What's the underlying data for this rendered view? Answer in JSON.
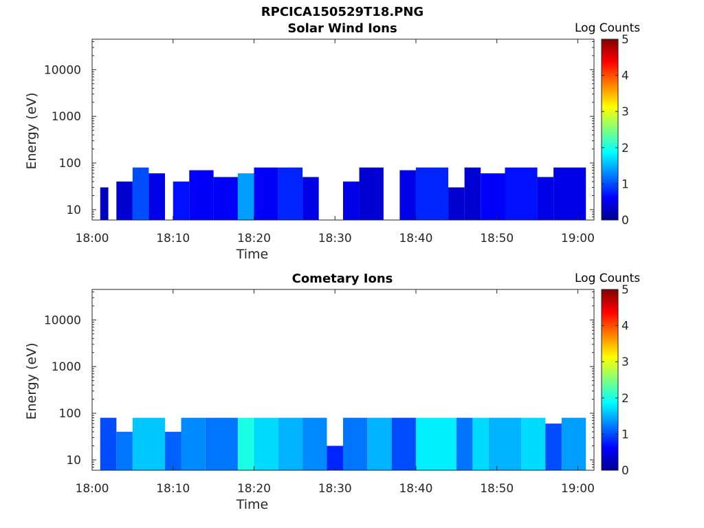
{
  "figure": {
    "title": "RPCICA150529T18.PNG"
  },
  "colors": {
    "colormap": "jet",
    "axis": "#262626",
    "background": "#ffffff"
  },
  "chart_data": [
    {
      "type": "heatmap",
      "title": "Solar Wind Ions",
      "xlabel": "Time",
      "ylabel": "Energy (eV)",
      "y_scale": "log",
      "ylim": [
        6,
        45000
      ],
      "xlim": [
        "18:00",
        "19:02"
      ],
      "x_ticks": [
        "18:00",
        "18:10",
        "18:20",
        "18:30",
        "18:40",
        "18:50",
        "19:00"
      ],
      "y_ticks": [
        "10",
        "100",
        "1000",
        "10000"
      ],
      "colorbar": {
        "label": "Log Counts",
        "min": 0,
        "max": 5,
        "ticks": [
          "0",
          "1",
          "2",
          "3",
          "4",
          "5"
        ]
      },
      "energy_range_observed": [
        6,
        80
      ],
      "segments": [
        {
          "start": "18:01",
          "end": "18:02",
          "emax": 30,
          "log_counts": 0.3
        },
        {
          "start": "18:03",
          "end": "18:05",
          "emax": 40,
          "log_counts": 0.4
        },
        {
          "start": "18:05",
          "end": "18:07",
          "emax": 80,
          "log_counts": 1.0
        },
        {
          "start": "18:07",
          "end": "18:09",
          "emax": 60,
          "log_counts": 0.5
        },
        {
          "start": "18:10",
          "end": "18:12",
          "emax": 40,
          "log_counts": 0.7
        },
        {
          "start": "18:12",
          "end": "18:15",
          "emax": 70,
          "log_counts": 0.6
        },
        {
          "start": "18:15",
          "end": "18:18",
          "emax": 50,
          "log_counts": 0.6
        },
        {
          "start": "18:18",
          "end": "18:20",
          "emax": 60,
          "log_counts": 1.4
        },
        {
          "start": "18:20",
          "end": "18:23",
          "emax": 80,
          "log_counts": 0.6
        },
        {
          "start": "18:23",
          "end": "18:26",
          "emax": 80,
          "log_counts": 0.8
        },
        {
          "start": "18:26",
          "end": "18:28",
          "emax": 50,
          "log_counts": 0.5
        },
        {
          "start": "18:31",
          "end": "18:33",
          "emax": 40,
          "log_counts": 0.5
        },
        {
          "start": "18:33",
          "end": "18:36",
          "emax": 80,
          "log_counts": 0.4
        },
        {
          "start": "18:38",
          "end": "18:40",
          "emax": 70,
          "log_counts": 0.5
        },
        {
          "start": "18:40",
          "end": "18:44",
          "emax": 80,
          "log_counts": 0.8
        },
        {
          "start": "18:44",
          "end": "18:46",
          "emax": 30,
          "log_counts": 0.4
        },
        {
          "start": "18:46",
          "end": "18:48",
          "emax": 80,
          "log_counts": 0.4
        },
        {
          "start": "18:48",
          "end": "18:51",
          "emax": 60,
          "log_counts": 0.6
        },
        {
          "start": "18:51",
          "end": "18:55",
          "emax": 80,
          "log_counts": 0.7
        },
        {
          "start": "18:55",
          "end": "18:57",
          "emax": 50,
          "log_counts": 0.5
        },
        {
          "start": "18:57",
          "end": "19:01",
          "emax": 80,
          "log_counts": 0.5
        }
      ]
    },
    {
      "type": "heatmap",
      "title": "Cometary Ions",
      "xlabel": "Time",
      "ylabel": "Energy (eV)",
      "y_scale": "log",
      "ylim": [
        6,
        45000
      ],
      "xlim": [
        "18:00",
        "19:02"
      ],
      "x_ticks": [
        "18:00",
        "18:10",
        "18:20",
        "18:30",
        "18:40",
        "18:50",
        "19:00"
      ],
      "y_ticks": [
        "10",
        "100",
        "1000",
        "10000"
      ],
      "colorbar": {
        "label": "Log Counts",
        "min": 0,
        "max": 5,
        "ticks": [
          "0",
          "1",
          "2",
          "3",
          "4",
          "5"
        ]
      },
      "energy_range_observed": [
        6,
        80
      ],
      "segments": [
        {
          "start": "18:01",
          "end": "18:03",
          "emax": 80,
          "log_counts": 1.0
        },
        {
          "start": "18:03",
          "end": "18:05",
          "emax": 40,
          "log_counts": 1.2
        },
        {
          "start": "18:05",
          "end": "18:09",
          "emax": 80,
          "log_counts": 1.6
        },
        {
          "start": "18:09",
          "end": "18:11",
          "emax": 40,
          "log_counts": 1.1
        },
        {
          "start": "18:11",
          "end": "18:14",
          "emax": 80,
          "log_counts": 1.3
        },
        {
          "start": "18:14",
          "end": "18:18",
          "emax": 80,
          "log_counts": 1.2
        },
        {
          "start": "18:18",
          "end": "18:20",
          "emax": 80,
          "log_counts": 2.0
        },
        {
          "start": "18:20",
          "end": "18:23",
          "emax": 80,
          "log_counts": 1.7
        },
        {
          "start": "18:23",
          "end": "18:26",
          "emax": 80,
          "log_counts": 1.5
        },
        {
          "start": "18:26",
          "end": "18:29",
          "emax": 80,
          "log_counts": 1.3
        },
        {
          "start": "18:29",
          "end": "18:31",
          "emax": 20,
          "log_counts": 0.8
        },
        {
          "start": "18:31",
          "end": "18:34",
          "emax": 80,
          "log_counts": 1.2
        },
        {
          "start": "18:34",
          "end": "18:37",
          "emax": 80,
          "log_counts": 1.5
        },
        {
          "start": "18:37",
          "end": "18:40",
          "emax": 80,
          "log_counts": 1.0
        },
        {
          "start": "18:40",
          "end": "18:45",
          "emax": 80,
          "log_counts": 1.8
        },
        {
          "start": "18:45",
          "end": "18:47",
          "emax": 80,
          "log_counts": 1.2
        },
        {
          "start": "18:47",
          "end": "18:49",
          "emax": 80,
          "log_counts": 1.7
        },
        {
          "start": "18:49",
          "end": "18:53",
          "emax": 80,
          "log_counts": 1.5
        },
        {
          "start": "18:53",
          "end": "18:56",
          "emax": 80,
          "log_counts": 1.7
        },
        {
          "start": "18:56",
          "end": "18:58",
          "emax": 60,
          "log_counts": 1.0
        },
        {
          "start": "18:58",
          "end": "19:01",
          "emax": 80,
          "log_counts": 1.4
        }
      ]
    }
  ]
}
